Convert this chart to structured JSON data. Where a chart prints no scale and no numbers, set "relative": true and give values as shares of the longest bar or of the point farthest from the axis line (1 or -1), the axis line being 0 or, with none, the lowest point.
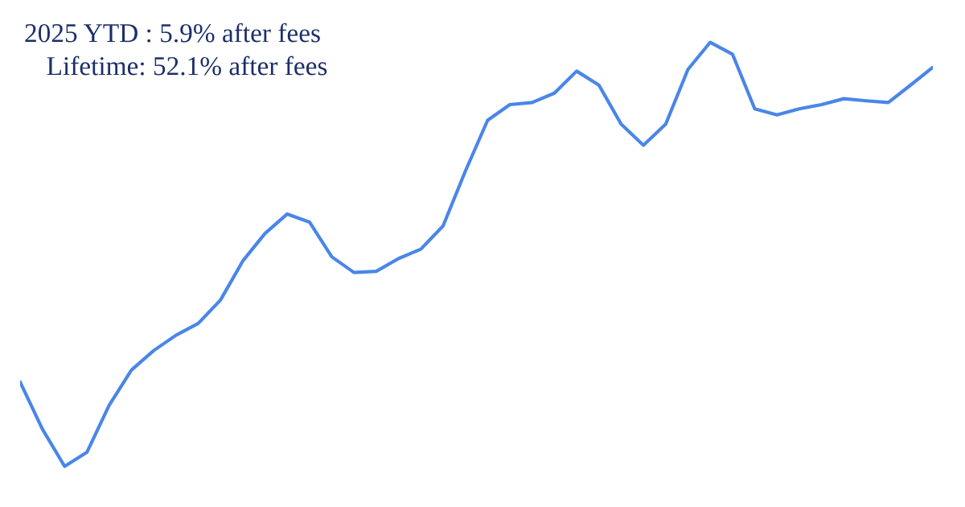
{
  "chart_data": {
    "type": "line",
    "relative": true,
    "categories": [
      null,
      null,
      null,
      null,
      null,
      null,
      null,
      null,
      null,
      null,
      null,
      null,
      null,
      null,
      null,
      null,
      null,
      null,
      null,
      null,
      null,
      null,
      null,
      null,
      null,
      null,
      null,
      null,
      null,
      null,
      null,
      null,
      null,
      null,
      null,
      null,
      null,
      null,
      null,
      null,
      null,
      null
    ],
    "series": [
      {
        "color": "#4a86e8",
        "values": [
          0.199,
          0.088,
          0,
          0.033,
          0.144,
          0.227,
          0.273,
          0.309,
          0.337,
          0.392,
          0.484,
          0.549,
          0.595,
          0.576,
          0.494,
          0.457,
          0.46,
          0.49,
          0.512,
          0.567,
          0.696,
          0.816,
          0.853,
          0.858,
          0.88,
          0.932,
          0.899,
          0.807,
          0.757,
          0.807,
          0.936,
          1,
          0.972,
          0.843,
          0.829,
          0.843,
          0.853,
          0.867,
          0.862,
          0.858,
          0.899,
          0.941
        ]
      }
    ],
    "annotations": [
      "2025 YTD : 5.9% after fees",
      "Lifetime: 52.1% after fees"
    ],
    "line_style": "solid"
  }
}
